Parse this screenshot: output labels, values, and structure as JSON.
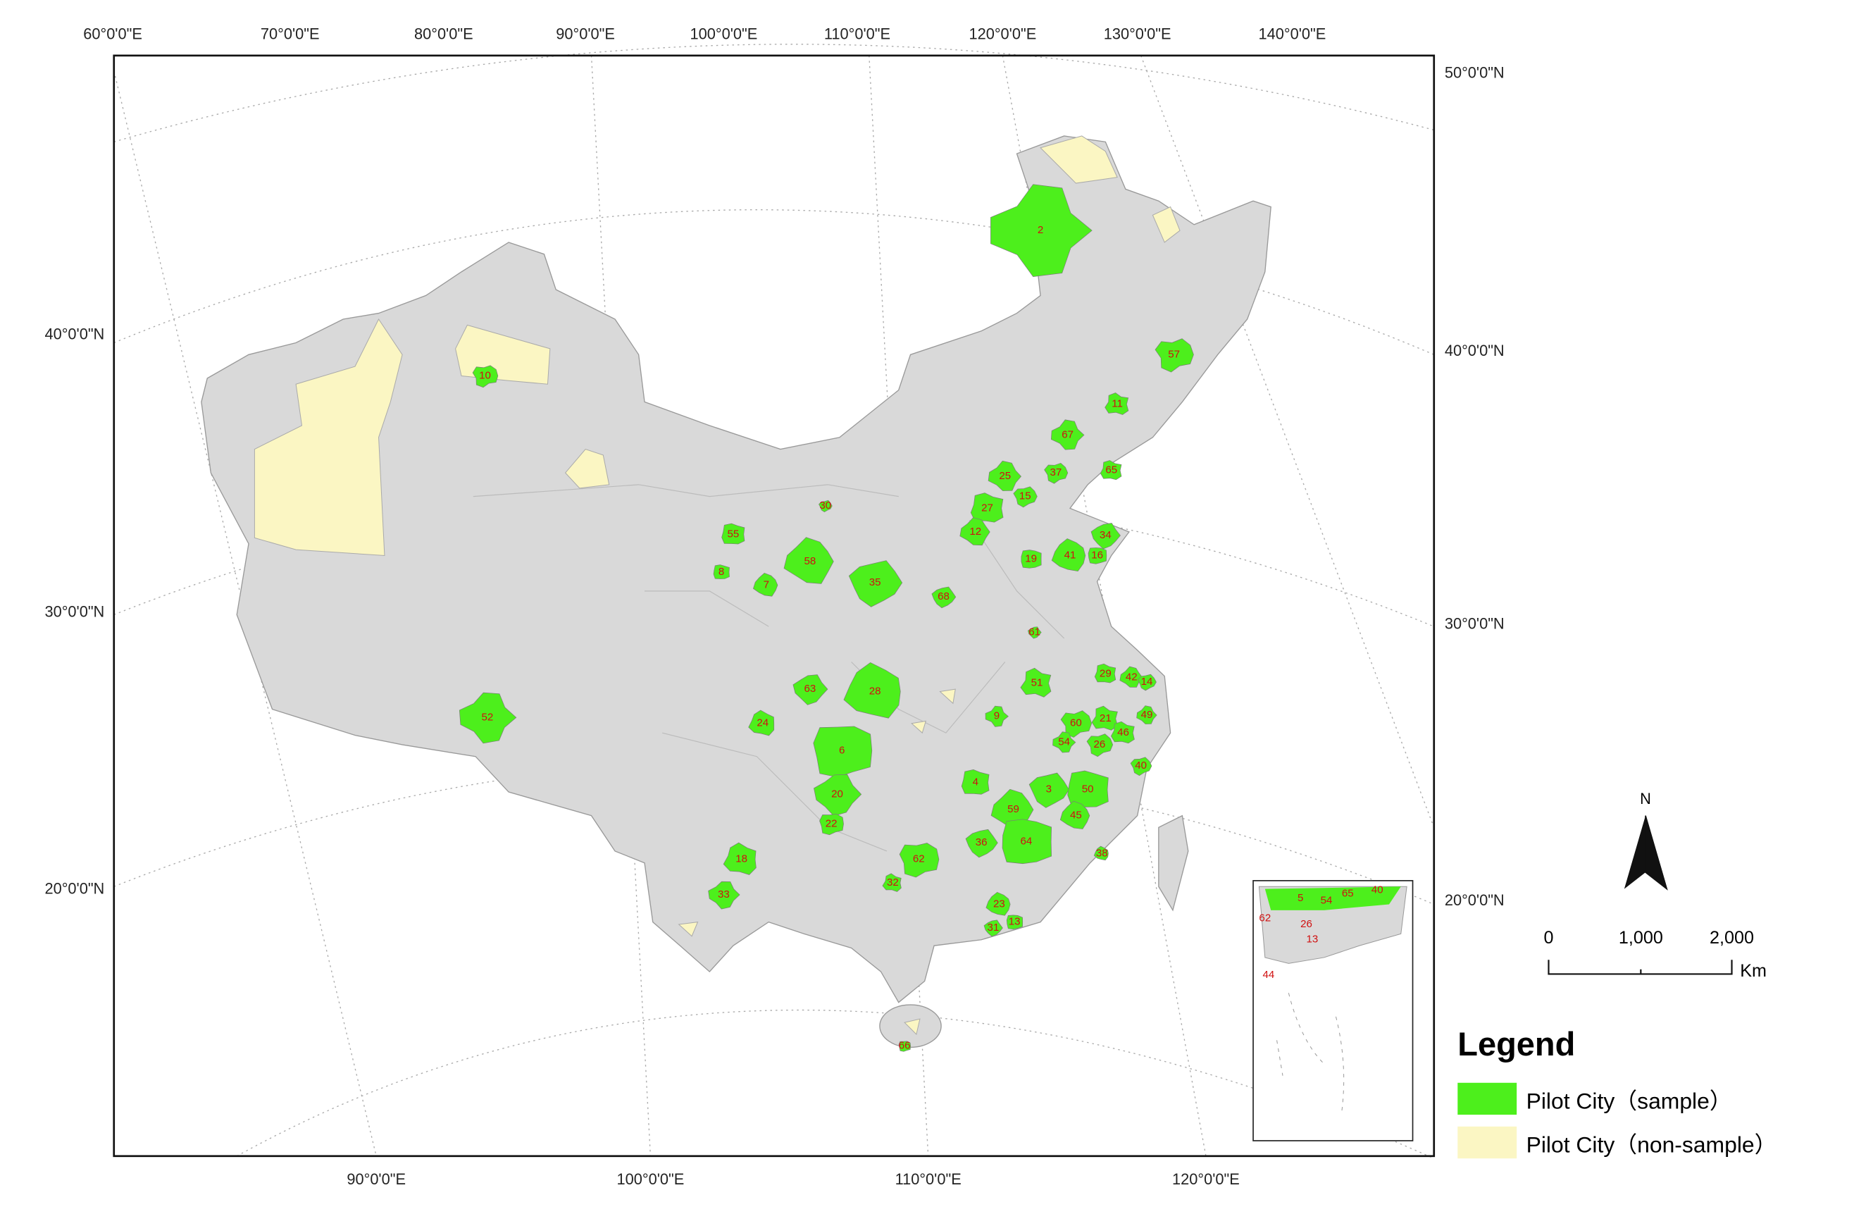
{
  "map": {
    "graticule_top": [
      "60°0'0\"E",
      "70°0'0\"E",
      "80°0'0\"E",
      "90°0'0\"E",
      "100°0'0\"E",
      "110°0'0\"E",
      "120°0'0\"E",
      "130°0'0\"E",
      "140°0'0\"E"
    ],
    "graticule_bottom": [
      "90°0'0\"E",
      "100°0'0\"E",
      "110°0'0\"E",
      "120°0'0\"E"
    ],
    "graticule_left": [
      "40°0'0\"N",
      "30°0'0\"N",
      "20°0'0\"N"
    ],
    "graticule_right": [
      "50°0'0\"N",
      "40°0'0\"N",
      "30°0'0\"N",
      "20°0'0\"N"
    ],
    "sample_cities": [
      "2",
      "57",
      "11",
      "67",
      "37",
      "65",
      "25",
      "15",
      "27",
      "12",
      "30",
      "55",
      "58",
      "35",
      "8",
      "7",
      "68",
      "19",
      "41",
      "34",
      "16",
      "28",
      "63",
      "6",
      "24",
      "20",
      "22",
      "18",
      "33",
      "62",
      "32",
      "52",
      "10",
      "51",
      "9",
      "60",
      "21",
      "54",
      "26",
      "46",
      "49",
      "40",
      "29",
      "42",
      "14",
      "4",
      "59",
      "3",
      "50",
      "45",
      "36",
      "64",
      "23",
      "31",
      "13",
      "38",
      "61",
      "66"
    ],
    "inset_cities": [
      "62",
      "5",
      "54",
      "65",
      "40",
      "26",
      "13",
      "44"
    ],
    "north": "N",
    "scale_labels": [
      "0",
      "1,000",
      "2,000"
    ],
    "scale_unit": "Km",
    "legend": {
      "title": "Legend",
      "items": [
        "Pilot City（sample）",
        "Pilot City（non-sample）"
      ]
    }
  }
}
